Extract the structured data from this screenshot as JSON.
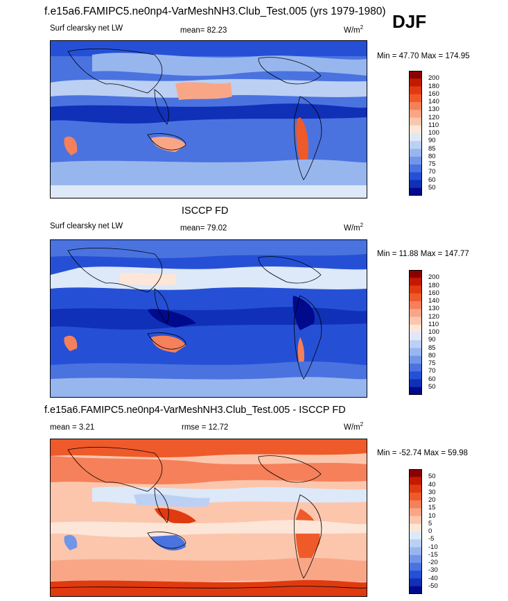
{
  "header": {
    "title": "f.e15a6.FAMIPC5.ne0np4-VarMeshNH3.Club_Test.005 (yrs 1979-1980)",
    "season": "DJF"
  },
  "panels": [
    {
      "title": "",
      "left_label": "Surf clearsky net LW",
      "mid_label": "mean=  82.23",
      "unit": "W/m",
      "unit_sup": "2",
      "minmax": "Min =  47.70 Max = 174.95",
      "levels": [
        "200",
        "180",
        "160",
        "140",
        "130",
        "120",
        "110",
        "100",
        "90",
        "85",
        "80",
        "75",
        "70",
        "60",
        "50"
      ],
      "colors": [
        "#8c0000",
        "#c21a00",
        "#e03a10",
        "#ef5a2a",
        "#f5805a",
        "#f9a687",
        "#fcc6ac",
        "#fde6d8",
        "#dde8f8",
        "#bcd0f4",
        "#98b6ee",
        "#7196e8",
        "#4a73e0",
        "#2550d6",
        "#1030b8",
        "#000a8a"
      ]
    },
    {
      "title": "ISCCP FD",
      "left_label": "Surf clearsky net LW",
      "mid_label": "mean=  79.02",
      "unit": "W/m",
      "unit_sup": "2",
      "minmax": "Min =  11.88 Max = 147.77",
      "levels": [
        "200",
        "180",
        "160",
        "140",
        "130",
        "120",
        "110",
        "100",
        "90",
        "85",
        "80",
        "75",
        "70",
        "60",
        "50"
      ],
      "colors": [
        "#8c0000",
        "#c21a00",
        "#e03a10",
        "#ef5a2a",
        "#f5805a",
        "#f9a687",
        "#fcc6ac",
        "#fde6d8",
        "#dde8f8",
        "#bcd0f4",
        "#98b6ee",
        "#7196e8",
        "#4a73e0",
        "#2550d6",
        "#1030b8",
        "#000a8a"
      ]
    },
    {
      "title": "f.e15a6.FAMIPC5.ne0np4-VarMeshNH3.Club_Test.005 - ISCCP FD",
      "left_label": "mean =   3.21",
      "mid_label": "rmse =  12.72",
      "unit": "W/m",
      "unit_sup": "2",
      "minmax": "Min = -52.74 Max =  59.98",
      "levels": [
        "50",
        "40",
        "30",
        "20",
        "15",
        "10",
        "5",
        "0",
        "-5",
        "-10",
        "-15",
        "-20",
        "-30",
        "-40",
        "-50"
      ],
      "colors": [
        "#8c0000",
        "#c21a00",
        "#e03a10",
        "#ef5a2a",
        "#f5805a",
        "#f9a687",
        "#fcc6ac",
        "#fde6d8",
        "#dde8f8",
        "#bcd0f4",
        "#98b6ee",
        "#7196e8",
        "#4a73e0",
        "#2550d6",
        "#1030b8",
        "#000a8a"
      ]
    }
  ]
}
